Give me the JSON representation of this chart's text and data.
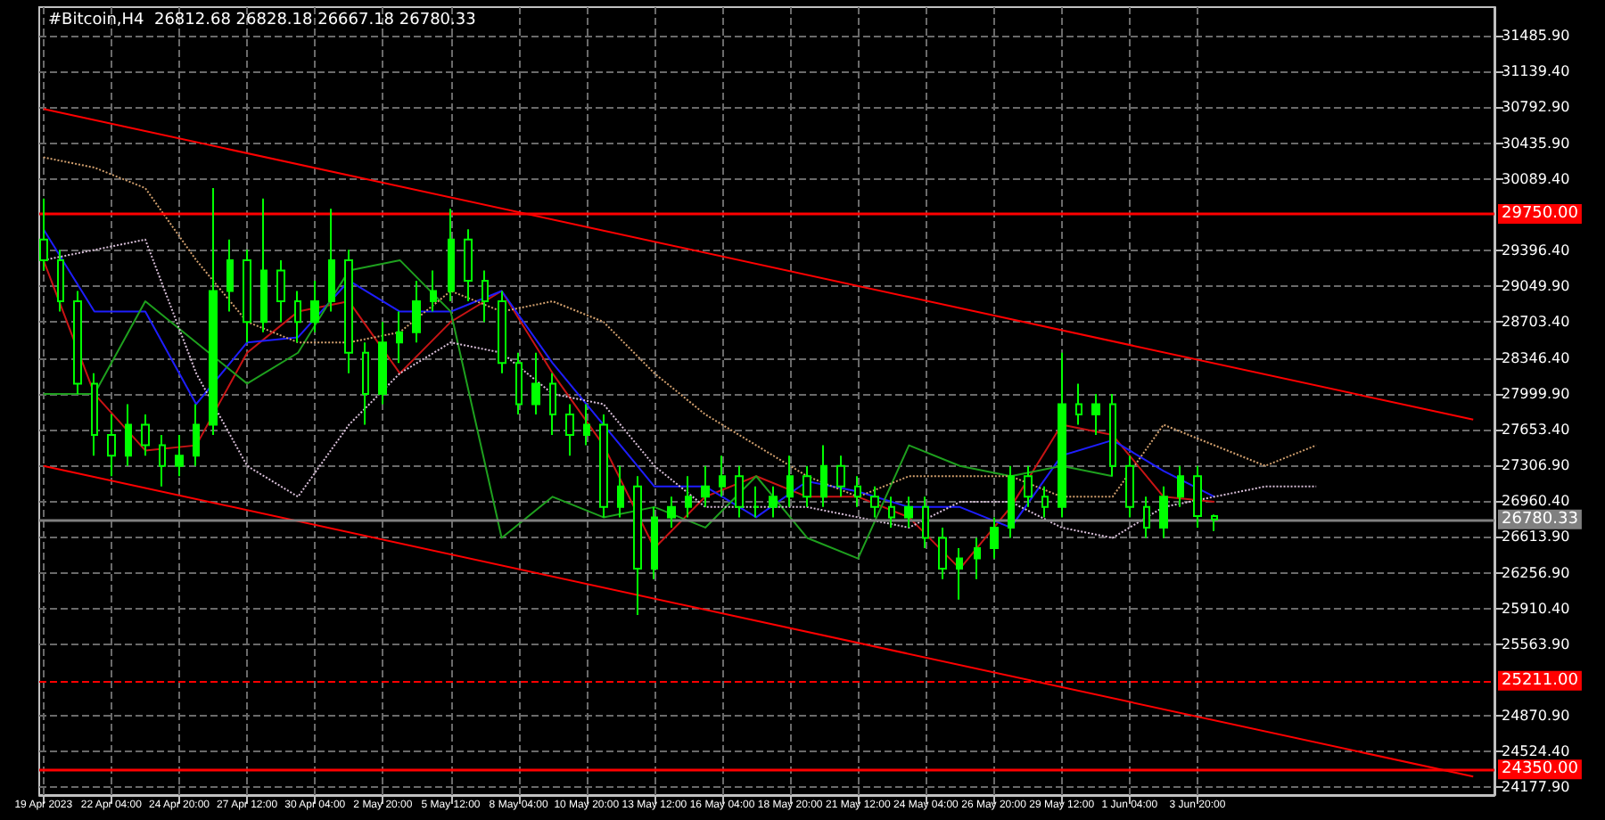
{
  "chart_data": {
    "type": "candlestick",
    "title": "#Bitcoin,H4  26812.68 26828.18 26667.18 26780.33",
    "color": "#00ff00",
    "x": [
      "2023-04-19T12:00",
      "2023-04-20T04:00",
      "2023-04-20T20:00",
      "2023-04-21T12:00",
      "2023-04-22T04:00",
      "2023-04-22T20:00",
      "2023-04-23T12:00",
      "2023-04-24T04:00",
      "2023-04-24T20:00",
      "2023-04-25T12:00",
      "2023-04-26T04:00",
      "2023-04-26T20:00",
      "2023-04-27T12:00",
      "2023-04-28T04:00",
      "2023-04-28T20:00",
      "2023-04-29T12:00",
      "2023-04-30T04:00",
      "2023-04-30T20:00",
      "2023-05-01T12:00",
      "2023-05-02T04:00",
      "2023-05-02T20:00",
      "2023-05-03T12:00",
      "2023-05-04T04:00",
      "2023-05-04T20:00",
      "2023-05-05T12:00",
      "2023-05-06T04:00",
      "2023-05-06T20:00",
      "2023-05-07T12:00",
      "2023-05-08T04:00",
      "2023-05-08T20:00",
      "2023-05-09T12:00",
      "2023-05-10T04:00",
      "2023-05-10T20:00",
      "2023-05-11T12:00",
      "2023-05-12T04:00",
      "2023-05-12T20:00",
      "2023-05-13T12:00",
      "2023-05-14T04:00",
      "2023-05-14T20:00",
      "2023-05-15T12:00",
      "2023-05-16T04:00",
      "2023-05-16T20:00",
      "2023-05-17T12:00",
      "2023-05-18T04:00",
      "2023-05-18T20:00",
      "2023-05-19T12:00",
      "2023-05-20T04:00",
      "2023-05-20T20:00",
      "2023-05-21T12:00",
      "2023-05-22T04:00",
      "2023-05-22T20:00",
      "2023-05-23T12:00",
      "2023-05-24T04:00",
      "2023-05-24T20:00",
      "2023-05-25T12:00",
      "2023-05-26T04:00",
      "2023-05-26T20:00",
      "2023-05-27T12:00",
      "2023-05-28T04:00",
      "2023-05-28T20:00",
      "2023-05-29T12:00",
      "2023-05-30T04:00",
      "2023-05-30T20:00",
      "2023-05-31T12:00",
      "2023-06-01T04:00",
      "2023-06-01T20:00",
      "2023-06-02T12:00",
      "2023-06-03T04:00",
      "2023-06-03T20:00",
      "2023-06-04T12:00"
    ],
    "ohlc": [
      [
        29500,
        29900,
        29200,
        29300
      ],
      [
        29300,
        29400,
        28800,
        28900
      ],
      [
        28900,
        29000,
        28000,
        28100
      ],
      [
        28100,
        28200,
        27400,
        27600
      ],
      [
        27600,
        27800,
        27200,
        27400
      ],
      [
        27400,
        27900,
        27300,
        27700
      ],
      [
        27700,
        27800,
        27400,
        27500
      ],
      [
        27500,
        27600,
        27100,
        27300
      ],
      [
        27300,
        27600,
        27200,
        27400
      ],
      [
        27400,
        27900,
        27300,
        27700
      ],
      [
        27700,
        30000,
        27600,
        29000
      ],
      [
        29000,
        29500,
        28800,
        29300
      ],
      [
        29300,
        29400,
        28500,
        28700
      ],
      [
        28700,
        29900,
        28600,
        29200
      ],
      [
        29200,
        29300,
        28700,
        28900
      ],
      [
        28900,
        29000,
        28500,
        28700
      ],
      [
        28700,
        29100,
        28600,
        28900
      ],
      [
        28900,
        29800,
        28800,
        29300
      ],
      [
        29300,
        29400,
        28200,
        28400
      ],
      [
        28400,
        28500,
        27700,
        28000
      ],
      [
        28000,
        28700,
        27900,
        28500
      ],
      [
        28500,
        28800,
        28300,
        28600
      ],
      [
        28600,
        29100,
        28500,
        28900
      ],
      [
        28900,
        29200,
        28800,
        29000
      ],
      [
        29000,
        29800,
        28900,
        29500
      ],
      [
        29500,
        29600,
        28900,
        29100
      ],
      [
        29100,
        29200,
        28700,
        28900
      ],
      [
        28900,
        29000,
        28200,
        28300
      ],
      [
        28300,
        28400,
        27800,
        27900
      ],
      [
        27900,
        28400,
        27800,
        28100
      ],
      [
        28100,
        28200,
        27600,
        27800
      ],
      [
        27800,
        27900,
        27400,
        27600
      ],
      [
        27600,
        27900,
        27500,
        27700
      ],
      [
        27700,
        27800,
        26800,
        26900
      ],
      [
        26900,
        27300,
        26800,
        27100
      ],
      [
        27100,
        27200,
        25850,
        26300
      ],
      [
        26300,
        26900,
        26200,
        26800
      ],
      [
        26800,
        27000,
        26700,
        26900
      ],
      [
        26900,
        27200,
        26800,
        27000
      ],
      [
        27000,
        27300,
        26900,
        27100
      ],
      [
        27100,
        27400,
        27000,
        27200
      ],
      [
        27200,
        27300,
        26800,
        26900
      ],
      [
        26900,
        27100,
        26800,
        26900
      ],
      [
        26900,
        27100,
        26800,
        27000
      ],
      [
        27000,
        27400,
        26900,
        27200
      ],
      [
        27200,
        27300,
        26900,
        27000
      ],
      [
        27000,
        27500,
        26900,
        27300
      ],
      [
        27300,
        27400,
        27000,
        27100
      ],
      [
        27100,
        27200,
        26900,
        27000
      ],
      [
        27000,
        27100,
        26800,
        26900
      ],
      [
        26900,
        27000,
        26700,
        26800
      ],
      [
        26800,
        27000,
        26700,
        26900
      ],
      [
        26900,
        27000,
        26500,
        26600
      ],
      [
        26600,
        26700,
        26200,
        26300
      ],
      [
        26300,
        26500,
        26000,
        26400
      ],
      [
        26400,
        26600,
        26200,
        26500
      ],
      [
        26500,
        26800,
        26400,
        26700
      ],
      [
        26700,
        27300,
        26600,
        27200
      ],
      [
        27200,
        27300,
        26900,
        27000
      ],
      [
        27000,
        27100,
        26800,
        26900
      ],
      [
        26900,
        28400,
        26800,
        27900
      ],
      [
        27900,
        28100,
        27700,
        27800
      ],
      [
        27800,
        28000,
        27600,
        27900
      ],
      [
        27900,
        28000,
        27200,
        27300
      ],
      [
        27300,
        27400,
        26800,
        26900
      ],
      [
        26900,
        27000,
        26600,
        26700
      ],
      [
        26700,
        27100,
        26600,
        27000
      ],
      [
        27000,
        27300,
        26900,
        27200
      ],
      [
        27200,
        27300,
        26700,
        26812.68
      ],
      [
        26812.68,
        26828.18,
        26667.18,
        26780.33
      ]
    ],
    "series": [
      {
        "type": "line",
        "color": "#ff0000",
        "x": [
          "2023-04-19T12:00",
          "2023-06-14T16:00"
        ],
        "values": [
          30770,
          27750
        ]
      },
      {
        "type": "line",
        "color": "#ff0000",
        "x": [
          "2023-04-19T12:00",
          "2023-06-14T16:00"
        ],
        "values": [
          27300,
          24280
        ]
      },
      {
        "type": "line",
        "color": "#c81414",
        "x": [
          "2023-04-19T12:00",
          "2023-04-21T12:00",
          "2023-04-23T12:00",
          "2023-04-25T12:00",
          "2023-04-27T12:00",
          "2023-04-29T12:00",
          "2023-05-01T12:00",
          "2023-05-03T12:00",
          "2023-05-05T12:00",
          "2023-05-07T12:00",
          "2023-05-09T12:00",
          "2023-05-11T12:00",
          "2023-05-13T12:00",
          "2023-05-15T12:00",
          "2023-05-17T12:00",
          "2023-05-19T12:00",
          "2023-05-21T12:00",
          "2023-05-23T12:00",
          "2023-05-25T12:00",
          "2023-05-27T12:00",
          "2023-05-29T12:00",
          "2023-05-31T12:00",
          "2023-06-02T12:00",
          "2023-06-04T12:00"
        ],
        "values": [
          29300,
          28000,
          27450,
          27500,
          28400,
          28800,
          28900,
          28200,
          28700,
          29000,
          28200,
          27500,
          26500,
          27000,
          27200,
          27000,
          27000,
          26800,
          26300,
          26900,
          27700,
          27600,
          27000,
          26950
        ]
      },
      {
        "type": "line",
        "color": "#1e1eff",
        "x": [
          "2023-04-19T12:00",
          "2023-04-21T12:00",
          "2023-04-23T12:00",
          "2023-04-25T12:00",
          "2023-04-27T12:00",
          "2023-04-29T12:00",
          "2023-05-01T12:00",
          "2023-05-03T12:00",
          "2023-05-05T12:00",
          "2023-05-07T12:00",
          "2023-05-09T12:00",
          "2023-05-11T12:00",
          "2023-05-13T12:00",
          "2023-05-15T12:00",
          "2023-05-17T12:00",
          "2023-05-19T12:00",
          "2023-05-21T12:00",
          "2023-05-23T12:00",
          "2023-05-25T12:00",
          "2023-05-27T12:00",
          "2023-05-29T12:00",
          "2023-05-31T12:00",
          "2023-06-02T12:00",
          "2023-06-04T12:00"
        ],
        "values": [
          29600,
          28800,
          28800,
          27900,
          28500,
          28550,
          29100,
          28800,
          28800,
          29000,
          28300,
          27700,
          27100,
          27100,
          26800,
          27150,
          27050,
          26900,
          26900,
          26700,
          27400,
          27550,
          27250,
          27000
        ]
      },
      {
        "type": "line",
        "color": "#1ea01e",
        "x": [
          "2023-04-19T12:00",
          "2023-04-21T12:00",
          "2023-04-23T12:00",
          "2023-04-25T12:00",
          "2023-04-27T12:00",
          "2023-04-29T12:00",
          "2023-05-01T12:00",
          "2023-05-03T12:00",
          "2023-05-05T12:00",
          "2023-05-07T12:00",
          "2023-05-09T12:00",
          "2023-05-11T12:00",
          "2023-05-13T12:00",
          "2023-05-15T12:00",
          "2023-05-17T12:00",
          "2023-05-19T12:00",
          "2023-05-21T12:00",
          "2023-05-23T12:00",
          "2023-05-25T12:00",
          "2023-05-27T12:00",
          "2023-05-29T12:00",
          "2023-05-31T12:00"
        ],
        "values": [
          28000,
          28000,
          28900,
          28500,
          28100,
          28400,
          29200,
          29300,
          28800,
          26600,
          27000,
          26800,
          26900,
          26700,
          27200,
          26600,
          26400,
          27500,
          27300,
          27200,
          27300,
          27200
        ]
      },
      {
        "type": "line",
        "color": "#d2a06e",
        "line_style": "dotted",
        "x": [
          "2023-04-19T12:00",
          "2023-04-21T12:00",
          "2023-04-23T12:00",
          "2023-04-25T12:00",
          "2023-04-27T12:00",
          "2023-04-29T12:00",
          "2023-05-01T12:00",
          "2023-05-03T12:00",
          "2023-05-05T12:00",
          "2023-05-07T12:00",
          "2023-05-09T12:00",
          "2023-05-11T12:00",
          "2023-05-13T12:00",
          "2023-05-15T12:00",
          "2023-05-17T12:00",
          "2023-05-19T12:00",
          "2023-05-21T12:00",
          "2023-05-23T12:00",
          "2023-05-25T12:00",
          "2023-05-27T12:00",
          "2023-05-29T12:00",
          "2023-05-31T12:00",
          "2023-06-02T12:00",
          "2023-06-04T12:00",
          "2023-06-06T12:00",
          "2023-06-08T12:00"
        ],
        "values": [
          30300,
          30200,
          30000,
          29300,
          28700,
          28500,
          28500,
          28600,
          29000,
          28800,
          28900,
          28700,
          28200,
          27800,
          27500,
          27200,
          27000,
          27200,
          27200,
          27200,
          27000,
          27000,
          27700,
          27500,
          27300,
          27500
        ]
      },
      {
        "type": "line",
        "color": "#d8bfd8",
        "line_style": "dotted",
        "x": [
          "2023-04-19T12:00",
          "2023-04-21T12:00",
          "2023-04-23T12:00",
          "2023-04-25T12:00",
          "2023-04-27T12:00",
          "2023-04-29T12:00",
          "2023-05-01T12:00",
          "2023-05-03T12:00",
          "2023-05-05T12:00",
          "2023-05-07T12:00",
          "2023-05-09T12:00",
          "2023-05-11T12:00",
          "2023-05-13T12:00",
          "2023-05-15T12:00",
          "2023-05-17T12:00",
          "2023-05-19T12:00",
          "2023-05-21T12:00",
          "2023-05-23T12:00",
          "2023-05-25T12:00",
          "2023-05-27T12:00",
          "2023-05-29T12:00",
          "2023-05-31T12:00",
          "2023-06-02T12:00",
          "2023-06-04T12:00",
          "2023-06-06T12:00",
          "2023-06-08T12:00"
        ],
        "values": [
          29300,
          29400,
          29500,
          28200,
          27300,
          27000,
          27700,
          28200,
          28500,
          28400,
          28000,
          27900,
          27300,
          26900,
          26900,
          26900,
          26800,
          26700,
          26950,
          26950,
          26700,
          26600,
          26900,
          27000,
          27100,
          27100
        ]
      }
    ],
    "ref_lines": [
      {
        "axis": "y",
        "value": 29750,
        "label": "29750.00",
        "color": "#ff0000",
        "line_style": "solid"
      },
      {
        "axis": "y",
        "value": 25211,
        "label": "25211.00",
        "color": "#ff0000",
        "line_style": "dashed"
      },
      {
        "axis": "y",
        "value": 24350,
        "label": "24350.00",
        "color": "#ff0000",
        "line_style": "solid"
      },
      {
        "axis": "y",
        "value": 26780.33,
        "label": "26780.33",
        "color": "#808080",
        "line_style": "solid"
      }
    ],
    "ylim": [
      24100,
      31760
    ],
    "yticks": [
      {
        "value": 24177.9,
        "label": "24177.90"
      },
      {
        "value": 24524.4,
        "label": "24524.40"
      },
      {
        "value": 24870.9,
        "label": "24870.90"
      },
      {
        "value": 25563.9,
        "label": "25563.90"
      },
      {
        "value": 25910.4,
        "label": "25910.40"
      },
      {
        "value": 26256.9,
        "label": "26256.90"
      },
      {
        "value": 26613.9,
        "label": "26613.90"
      },
      {
        "value": 26960.4,
        "label": "26960.40"
      },
      {
        "value": 27306.9,
        "label": "27306.90"
      },
      {
        "value": 27653.4,
        "label": "27653.40"
      },
      {
        "value": 27999.9,
        "label": "27999.90"
      },
      {
        "value": 28346.4,
        "label": "28346.40"
      },
      {
        "value": 28703.4,
        "label": "28703.40"
      },
      {
        "value": 29049.9,
        "label": "29049.90"
      },
      {
        "value": 29396.4,
        "label": "29396.40"
      },
      {
        "value": 30089.4,
        "label": "30089.40"
      },
      {
        "value": 30435.9,
        "label": "30435.90"
      },
      {
        "value": 30792.9,
        "label": "30792.90"
      },
      {
        "value": 31139.4,
        "label": "31139.40"
      },
      {
        "value": 31485.9,
        "label": "31485.90"
      }
    ],
    "xlim": [
      "2023-04-19T08:00",
      "2023-06-15T12:00"
    ],
    "xticks": [
      {
        "value": "2023-04-19T12:00",
        "label": "19 Apr 2023"
      },
      {
        "value": "2023-04-22T04:00",
        "label": "22 Apr 04:00"
      },
      {
        "value": "2023-04-24T20:00",
        "label": "24 Apr 20:00"
      },
      {
        "value": "2023-04-27T12:00",
        "label": "27 Apr 12:00"
      },
      {
        "value": "2023-04-30T04:00",
        "label": "30 Apr 04:00"
      },
      {
        "value": "2023-05-02T20:00",
        "label": "2 May 20:00"
      },
      {
        "value": "2023-05-05T12:00",
        "label": "5 May 12:00"
      },
      {
        "value": "2023-05-08T04:00",
        "label": "8 May 04:00"
      },
      {
        "value": "2023-05-10T20:00",
        "label": "10 May 20:00"
      },
      {
        "value": "2023-05-13T12:00",
        "label": "13 May 12:00"
      },
      {
        "value": "2023-05-16T04:00",
        "label": "16 May 04:00"
      },
      {
        "value": "2023-05-18T20:00",
        "label": "18 May 20:00"
      },
      {
        "value": "2023-05-21T12:00",
        "label": "21 May 12:00"
      },
      {
        "value": "2023-05-24T04:00",
        "label": "24 May 04:00"
      },
      {
        "value": "2023-05-26T20:00",
        "label": "26 May 20:00"
      },
      {
        "value": "2023-05-29T12:00",
        "label": "29 May 12:00"
      },
      {
        "value": "2023-06-01T04:00",
        "label": "1 Jun 04:00"
      },
      {
        "value": "2023-06-03T20:00",
        "label": "3 Jun 20:00"
      }
    ],
    "grid": true
  }
}
